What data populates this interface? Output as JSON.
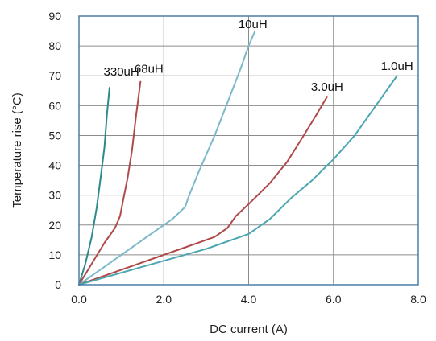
{
  "chart_data": {
    "type": "line",
    "title": "",
    "xlabel": "DC current (A)",
    "ylabel": "Temperature rise (°C)",
    "xlim": [
      0,
      8
    ],
    "ylim": [
      0,
      90
    ],
    "xticks": [
      0,
      2,
      4,
      6,
      8
    ],
    "yticks": [
      0,
      10,
      20,
      30,
      40,
      50,
      60,
      70,
      80,
      90
    ],
    "xtick_labels": [
      "0.0",
      "2.0",
      "4.0",
      "6.0",
      "8.0"
    ],
    "ytick_labels": [
      "0",
      "10",
      "20",
      "30",
      "40",
      "50",
      "60",
      "70",
      "80",
      "90"
    ],
    "grid": true,
    "legend": "inline labels",
    "series": [
      {
        "name": "330uH",
        "color": "#2c8a8c",
        "x": [
          0,
          0.15,
          0.3,
          0.42,
          0.52,
          0.6,
          0.66,
          0.72
        ],
        "y": [
          0,
          7,
          16,
          26,
          37,
          46,
          57,
          66
        ]
      },
      {
        "name": "68uH",
        "color": "#b04a4a",
        "x": [
          0,
          0.3,
          0.6,
          0.85,
          0.97,
          1.05,
          1.15,
          1.25,
          1.35,
          1.45
        ],
        "y": [
          0,
          7,
          14,
          19,
          23,
          29,
          36,
          45,
          57,
          68
        ]
      },
      {
        "name": "10uH",
        "color": "#7cb8c8",
        "x": [
          0,
          0.8,
          1.6,
          2.2,
          2.5,
          2.6,
          2.8,
          3.2,
          3.5,
          3.8,
          4.0,
          4.15
        ],
        "y": [
          0,
          8,
          16,
          22,
          26,
          30,
          37,
          50,
          61,
          72,
          80,
          85
        ]
      },
      {
        "name": "3.0uH",
        "color": "#b04a4a",
        "x": [
          0,
          1.2,
          2.4,
          3.2,
          3.5,
          3.7,
          4.0,
          4.5,
          4.9,
          5.3,
          5.6,
          5.85
        ],
        "y": [
          0,
          6,
          12,
          16,
          19,
          23,
          27,
          34,
          41,
          50,
          57,
          63
        ]
      },
      {
        "name": "1.0uH",
        "color": "#4aa6b0",
        "x": [
          0,
          1.5,
          3.0,
          4.0,
          4.5,
          5.0,
          5.5,
          6.0,
          6.5,
          7.0,
          7.5
        ],
        "y": [
          0,
          6,
          12,
          17,
          22,
          29,
          35,
          42,
          50,
          60,
          70
        ]
      }
    ],
    "label_positions": [
      {
        "series": "330uH",
        "anchor": [
          1.0,
          70
        ]
      },
      {
        "series": "68uH",
        "anchor": [
          1.65,
          71
        ]
      },
      {
        "series": "10uH",
        "anchor": [
          4.1,
          86
        ]
      },
      {
        "series": "3.0uH",
        "anchor": [
          5.85,
          65
        ]
      },
      {
        "series": "1.0uH",
        "anchor": [
          7.5,
          72
        ]
      }
    ]
  }
}
